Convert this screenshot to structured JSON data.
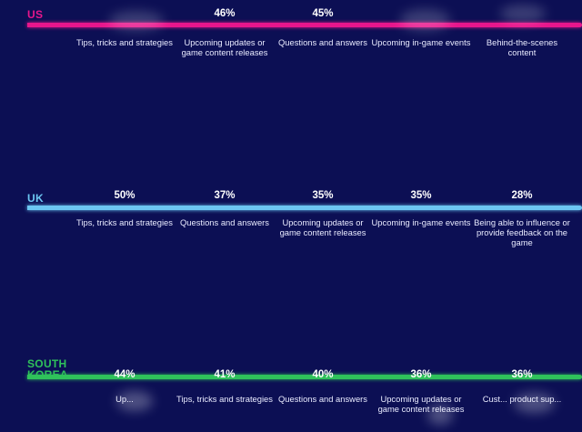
{
  "chart_data": [
    {
      "type": "bar",
      "country": "US",
      "color": "#e8168c",
      "categories": [
        "Tips, tricks and strategies",
        "Upcoming updates or game content releases",
        "Questions and answers",
        "Upcoming in-game events",
        "Behind-the-scenes content"
      ],
      "values": [
        null,
        46,
        45,
        null,
        null
      ],
      "value_labels": [
        "",
        "46%",
        "45%",
        "",
        ""
      ]
    },
    {
      "type": "bar",
      "country": "UK",
      "color": "#6cc6f2",
      "categories": [
        "Tips, tricks and strategies",
        "Questions and answers",
        "Upcoming updates or game content releases",
        "Upcoming in-game events",
        "Being able to influence or provide feedback on the game"
      ],
      "values": [
        50,
        37,
        35,
        35,
        28
      ],
      "value_labels": [
        "50%",
        "37%",
        "35%",
        "35%",
        "28%"
      ]
    },
    {
      "type": "bar",
      "country": "SOUTH KOREA",
      "color": "#2fc25b",
      "categories": [
        "Up...",
        "Tips, tricks and strategies",
        "Questions and answers",
        "Upcoming updates or game content releases",
        "Cust... product sup..."
      ],
      "values": [
        44,
        41,
        40,
        36,
        36
      ],
      "value_labels": [
        "44%",
        "41%",
        "40%",
        "36%",
        "36%"
      ]
    }
  ],
  "sections": [
    {
      "country": "US",
      "color": "#e8168c",
      "items": [
        {
          "pct": "",
          "label": "Tips, tricks and strategies"
        },
        {
          "pct": "46%",
          "label": "Upcoming updates or game content releases"
        },
        {
          "pct": "45%",
          "label": "Questions and answers"
        },
        {
          "pct": "",
          "label": "Upcoming in-game events"
        },
        {
          "pct": "",
          "label": "Behind-the-scenes content"
        }
      ]
    },
    {
      "country": "UK",
      "color": "#6cc6f2",
      "items": [
        {
          "pct": "50%",
          "label": "Tips, tricks and strategies"
        },
        {
          "pct": "37%",
          "label": "Questions and answers"
        },
        {
          "pct": "35%",
          "label": "Upcoming updates or game content releases"
        },
        {
          "pct": "35%",
          "label": "Upcoming in-game events"
        },
        {
          "pct": "28%",
          "label": "Being able to influence or provide feedback on the game"
        }
      ]
    },
    {
      "country": "SOUTH KOREA",
      "color": "#2fc25b",
      "items": [
        {
          "pct": "44%",
          "label": "Up..."
        },
        {
          "pct": "41%",
          "label": "Tips, tricks and strategies"
        },
        {
          "pct": "40%",
          "label": "Questions and answers"
        },
        {
          "pct": "36%",
          "label": "Upcoming updates or game content releases"
        },
        {
          "pct": "36%",
          "label": "Cust... product sup..."
        }
      ]
    }
  ]
}
